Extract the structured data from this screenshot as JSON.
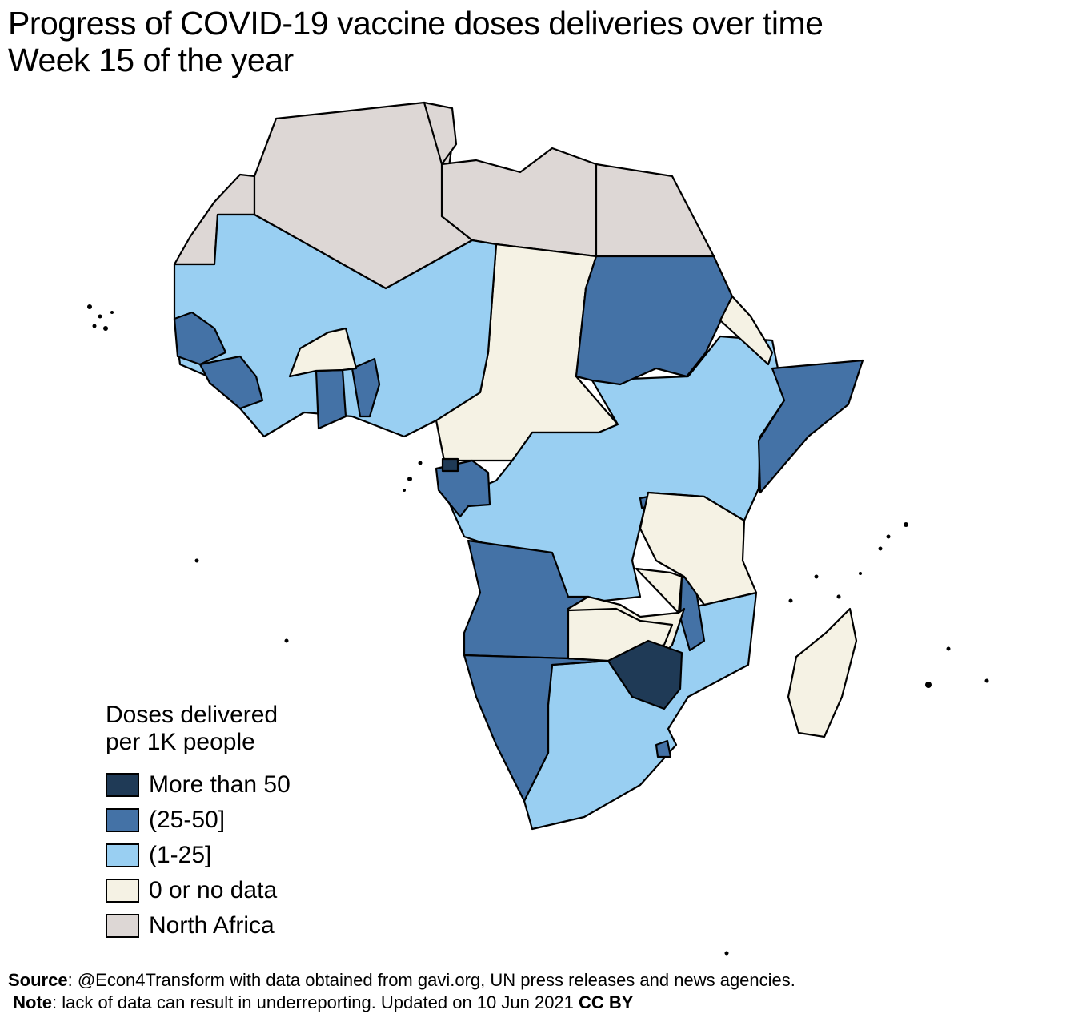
{
  "title": {
    "line1": "Progress of COVID-19 vaccine doses deliveries over time",
    "line2": "Week 15 of the year"
  },
  "legend": {
    "title_line1": "Doses delivered",
    "title_line2": "per 1K people",
    "items": [
      {
        "label": "More than 50",
        "color": "#1f3a56"
      },
      {
        "label": "(25-50]",
        "color": "#4472a6"
      },
      {
        "label": "(1-25]",
        "color": "#99cff2"
      },
      {
        "label": "0 or no data",
        "color": "#f5f2e4"
      },
      {
        "label": "North Africa",
        "color": "#ddd7d5"
      }
    ]
  },
  "footer": {
    "source_label": "Source",
    "source_text": ": @Econ4Transform with data obtained from gavi.org, UN press releases and news agencies.",
    "note_label": "Note",
    "note_text": ": lack of data can result in underreporting. Updated on 10 Jun 2021 ",
    "license": "CC BY"
  },
  "colors": {
    "more_than_50": "#1f3a56",
    "25_50": "#4472a6",
    "1_25": "#99cff2",
    "no_data": "#f5f2e4",
    "north_africa": "#ddd7d5"
  }
}
